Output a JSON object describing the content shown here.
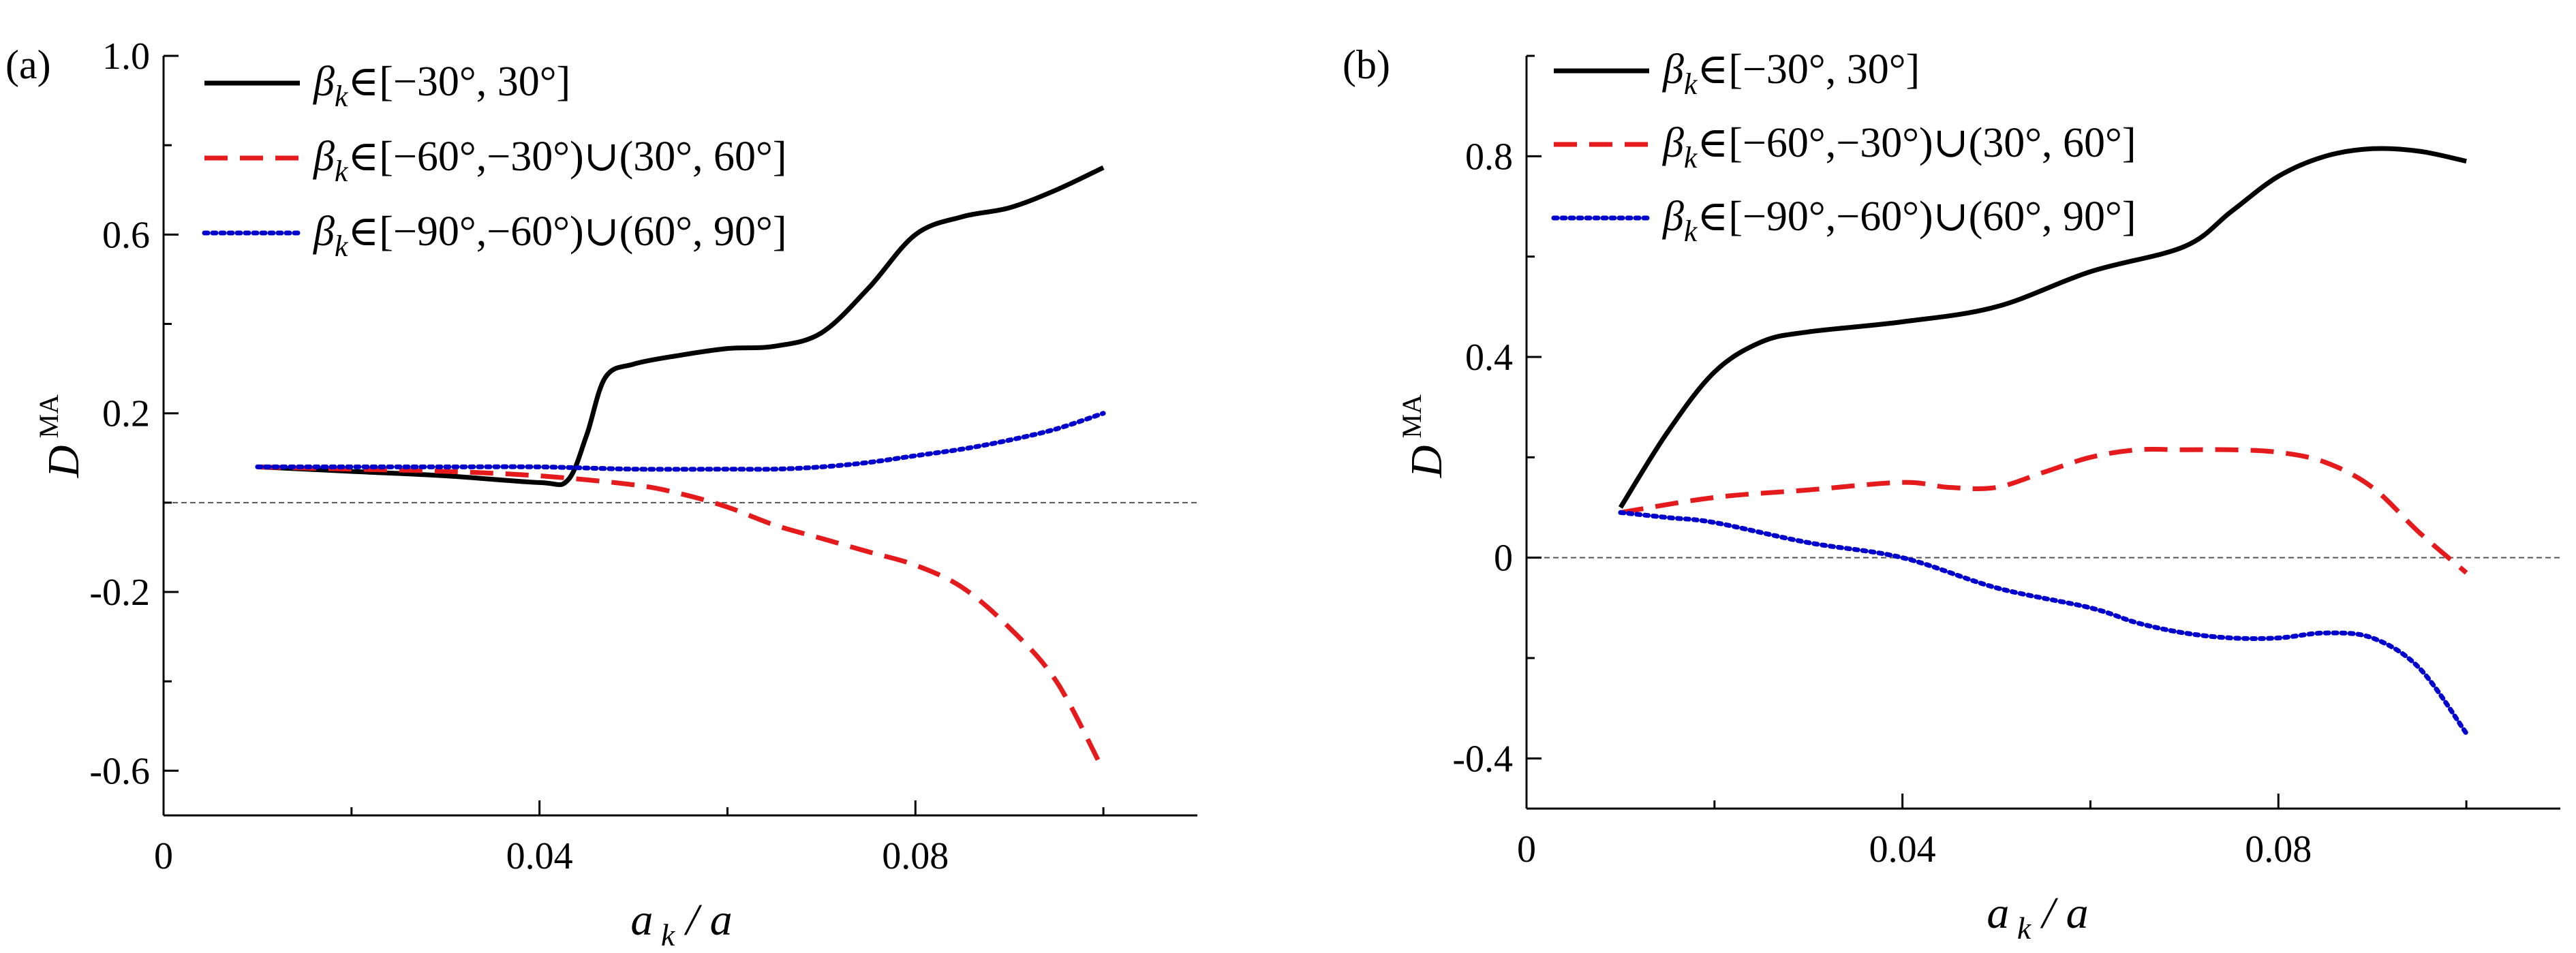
{
  "chart_data": [
    {
      "panel_label": "(a)",
      "type": "line",
      "xlabel": "a_k / a",
      "ylabel": "D^MA",
      "xlim": [
        0,
        0.11
      ],
      "ylim": [
        -0.7,
        1.0
      ],
      "xticks": [
        0,
        0.04,
        0.08
      ],
      "xtick_labels": [
        "0",
        "0.04",
        "0.08"
      ],
      "yticks": [
        -0.6,
        -0.2,
        0.2,
        0.6,
        1.0
      ],
      "ytick_labels": [
        "-0.6",
        "-0.2",
        "0.2",
        "0.6",
        "1.0"
      ],
      "reference_line_y": 0,
      "legend_position": "top-left",
      "series": [
        {
          "name": "βk∈[−30°, 30°]",
          "style": "solid",
          "color": "#000000",
          "x": [
            0.01,
            0.02,
            0.03,
            0.04,
            0.043,
            0.045,
            0.047,
            0.05,
            0.055,
            0.06,
            0.065,
            0.07,
            0.075,
            0.08,
            0.085,
            0.09,
            0.095,
            0.1
          ],
          "y": [
            0.08,
            0.07,
            0.06,
            0.045,
            0.05,
            0.15,
            0.28,
            0.31,
            0.33,
            0.345,
            0.35,
            0.38,
            0.48,
            0.6,
            0.64,
            0.66,
            0.7,
            0.75
          ]
        },
        {
          "name": "βk∈[−60°,−30°)∪(30°, 60°]",
          "style": "dashed",
          "color": "#e41a1c",
          "x": [
            0.01,
            0.02,
            0.03,
            0.04,
            0.05,
            0.055,
            0.06,
            0.065,
            0.07,
            0.075,
            0.08,
            0.085,
            0.09,
            0.095,
            0.1
          ],
          "y": [
            0.08,
            0.075,
            0.07,
            0.06,
            0.04,
            0.02,
            -0.01,
            -0.05,
            -0.08,
            -0.11,
            -0.14,
            -0.19,
            -0.28,
            -0.4,
            -0.6
          ]
        },
        {
          "name": "βk∈[−90°,−60°)∪(60°, 90°]",
          "style": "dotted",
          "color": "#0000cc",
          "x": [
            0.01,
            0.02,
            0.03,
            0.04,
            0.05,
            0.06,
            0.065,
            0.07,
            0.075,
            0.08,
            0.085,
            0.09,
            0.095,
            0.1
          ],
          "y": [
            0.08,
            0.08,
            0.08,
            0.08,
            0.075,
            0.075,
            0.075,
            0.08,
            0.09,
            0.105,
            0.12,
            0.14,
            0.165,
            0.2
          ]
        }
      ]
    },
    {
      "panel_label": "(b)",
      "type": "line",
      "xlabel": "a_k / a",
      "ylabel": "D^MA",
      "xlim": [
        0,
        0.11
      ],
      "ylim": [
        -0.5,
        1.0
      ],
      "xticks": [
        0,
        0.04,
        0.08
      ],
      "xtick_labels": [
        "0",
        "0.04",
        "0.08"
      ],
      "yticks": [
        -0.4,
        0,
        0.4,
        0.8
      ],
      "ytick_labels": [
        "-0.4",
        "0",
        "0.4",
        "0.8"
      ],
      "reference_line_y": 0,
      "legend_position": "top-left",
      "series": [
        {
          "name": "βk∈[−30°, 30°]",
          "style": "solid",
          "color": "#000000",
          "x": [
            0.01,
            0.015,
            0.02,
            0.025,
            0.03,
            0.04,
            0.05,
            0.06,
            0.07,
            0.075,
            0.08,
            0.085,
            0.09,
            0.095,
            0.1
          ],
          "y": [
            0.1,
            0.25,
            0.37,
            0.43,
            0.45,
            0.47,
            0.5,
            0.57,
            0.62,
            0.69,
            0.76,
            0.8,
            0.815,
            0.81,
            0.79
          ]
        },
        {
          "name": "βk∈[−60°,−30°)∪(30°, 60°]",
          "style": "dashed",
          "color": "#e41a1c",
          "x": [
            0.01,
            0.02,
            0.03,
            0.04,
            0.045,
            0.05,
            0.055,
            0.06,
            0.065,
            0.07,
            0.075,
            0.08,
            0.085,
            0.09,
            0.095,
            0.1
          ],
          "y": [
            0.09,
            0.12,
            0.135,
            0.15,
            0.14,
            0.14,
            0.17,
            0.2,
            0.215,
            0.215,
            0.215,
            0.21,
            0.19,
            0.14,
            0.05,
            -0.03
          ]
        },
        {
          "name": "βk∈[−90°,−60°)∪(60°, 90°]",
          "style": "dotted",
          "color": "#0000cc",
          "x": [
            0.01,
            0.015,
            0.02,
            0.03,
            0.04,
            0.05,
            0.06,
            0.065,
            0.07,
            0.075,
            0.08,
            0.085,
            0.09,
            0.095,
            0.1
          ],
          "y": [
            0.09,
            0.08,
            0.07,
            0.03,
            0.0,
            -0.06,
            -0.1,
            -0.13,
            -0.15,
            -0.16,
            -0.16,
            -0.15,
            -0.16,
            -0.22,
            -0.35
          ]
        }
      ]
    }
  ]
}
